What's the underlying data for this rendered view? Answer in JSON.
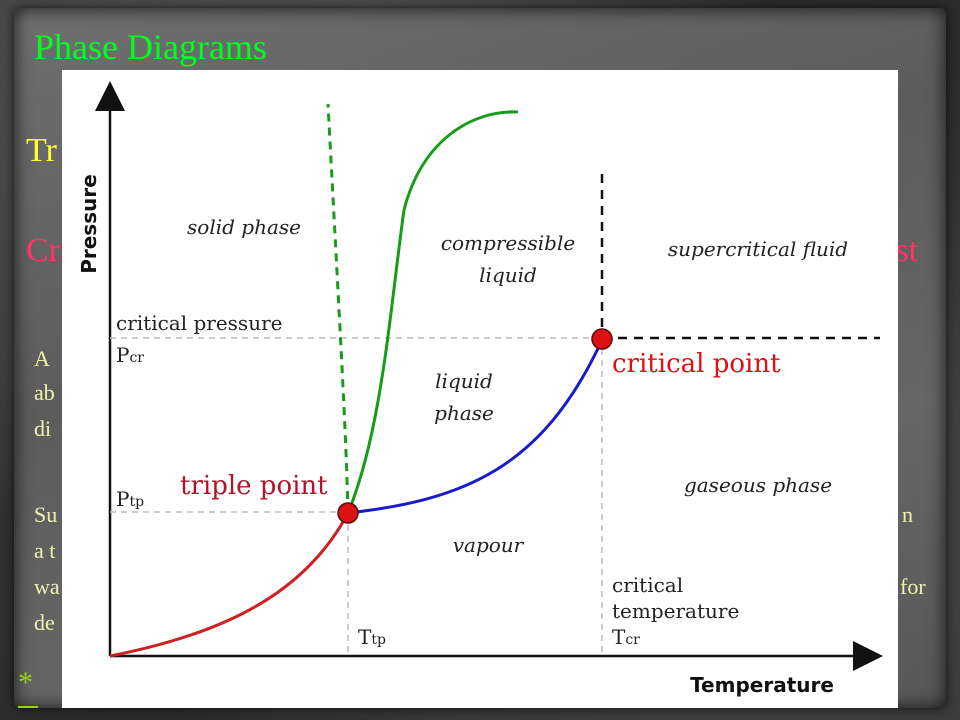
{
  "slide": {
    "title": "Phase Diagrams",
    "line_tr": "Tr",
    "line_cr": "Cr",
    "line_ist": "ist",
    "para_fragments": [
      "A",
      "ab",
      "di",
      "Su",
      "a t",
      "wa",
      "de"
    ],
    "right_fragments": [
      "n",
      "for"
    ],
    "bullet": "*"
  },
  "diagram": {
    "y_axis_label": "Pressure",
    "x_axis_label": "Temperature",
    "regions": {
      "solid": "solid phase",
      "compressible_1": "compressible",
      "compressible_2": "liquid",
      "supercritical": "supercritical fluid",
      "liquid_1": "liquid",
      "liquid_2": "phase",
      "gaseous": "gaseous phase",
      "vapour": "vapour"
    },
    "labels": {
      "critical_pressure": "critical pressure",
      "p_cr_main": "P",
      "p_cr_sub": "cr",
      "p_tp_main": "P",
      "p_tp_sub": "tp",
      "triple_point": "triple point",
      "critical_point": "critical point",
      "t_tp_main": "T",
      "t_tp_sub": "tp",
      "critical_temp_1": "critical",
      "critical_temp_2": "temperature",
      "t_cr_main": "T",
      "t_cr_sub": "cr"
    },
    "colors": {
      "sublimation": "#cc2222",
      "melting": "#1a9a1a",
      "vaporization": "#1a1acc",
      "point": "#dd1111",
      "critical_text": "#dd1111",
      "triple_text": "#b0142a"
    }
  }
}
